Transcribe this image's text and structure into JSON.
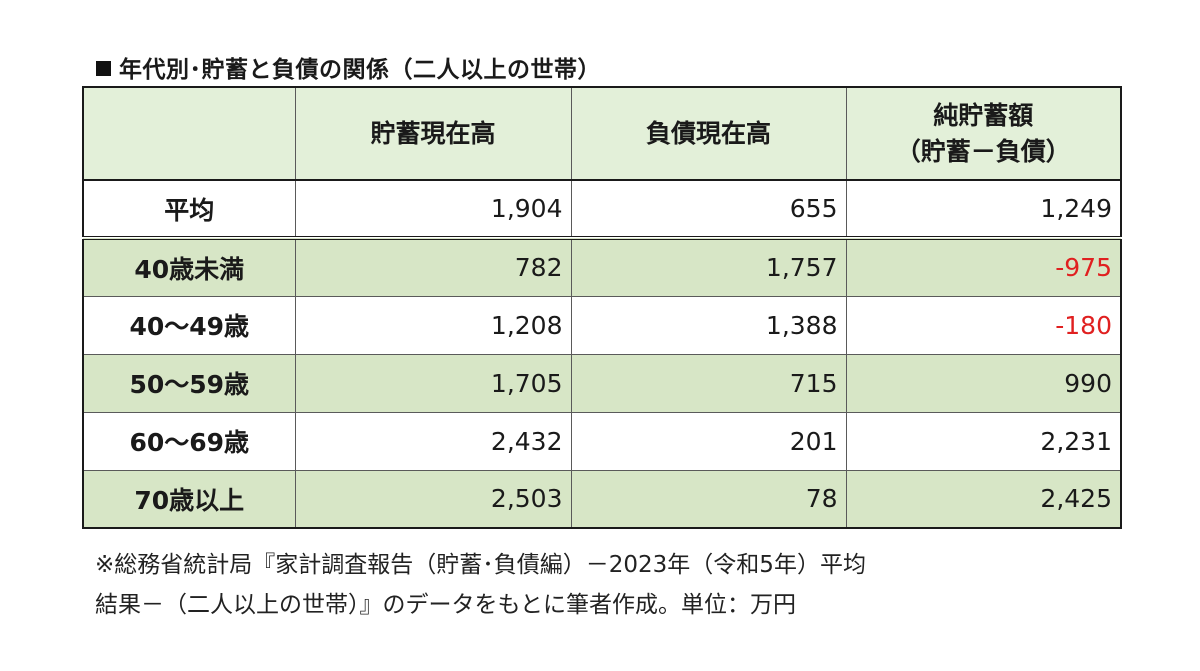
{
  "title": "年代別･貯蓄と負債の関係（二人以上の世帯）",
  "table": {
    "headers": [
      "",
      "貯蓄現在高",
      "負債現在高",
      "純貯蓄額\n（貯蓄－負債）"
    ],
    "header_col3_line1": "純貯蓄額",
    "header_col3_line2": "（貯蓄－負債）",
    "rows": [
      {
        "label": "平均",
        "savings": "1,904",
        "debt": "655",
        "net": "1,249",
        "negative": false
      },
      {
        "label": "40歳未満",
        "savings": "782",
        "debt": "1,757",
        "net": "-975",
        "negative": true
      },
      {
        "label": "40～49歳",
        "savings": "1,208",
        "debt": "1,388",
        "net": "-180",
        "negative": true
      },
      {
        "label": "50～59歳",
        "savings": "1,705",
        "debt": "715",
        "net": "990",
        "negative": false
      },
      {
        "label": "60～69歳",
        "savings": "2,432",
        "debt": "201",
        "net": "2,231",
        "negative": false
      },
      {
        "label": "70歳以上",
        "savings": "2,503",
        "debt": "78",
        "net": "2,425",
        "negative": false
      }
    ]
  },
  "colors": {
    "header_bg": "#e3f0d9",
    "green_row_bg": "#d7e6c6",
    "negative_text": "#e02020"
  },
  "note_line1": "※総務省統計局『家計調査報告（貯蓄･負債編）－2023年（令和5年）平均",
  "note_line2": "結果－（二人以上の世帯）』のデータをもとに筆者作成。単位：万円"
}
